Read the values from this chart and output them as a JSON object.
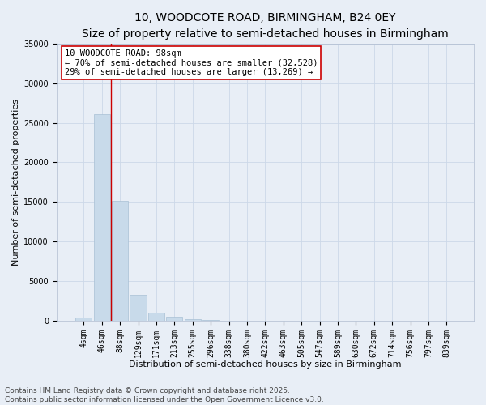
{
  "title_line1": "10, WOODCOTE ROAD, BIRMINGHAM, B24 0EY",
  "title_line2": "Size of property relative to semi-detached houses in Birmingham",
  "xlabel": "Distribution of semi-detached houses by size in Birmingham",
  "ylabel": "Number of semi-detached properties",
  "bar_color": "#c8daea",
  "bar_edge_color": "#a8c0d4",
  "bar_categories": [
    "4sqm",
    "46sqm",
    "88sqm",
    "129sqm",
    "171sqm",
    "213sqm",
    "255sqm",
    "296sqm",
    "338sqm",
    "380sqm",
    "422sqm",
    "463sqm",
    "505sqm",
    "547sqm",
    "589sqm",
    "630sqm",
    "672sqm",
    "714sqm",
    "756sqm",
    "797sqm",
    "839sqm"
  ],
  "bar_values": [
    400,
    26100,
    15100,
    3300,
    1050,
    530,
    230,
    70,
    20,
    8,
    3,
    1,
    0,
    0,
    0,
    0,
    0,
    0,
    0,
    0,
    0
  ],
  "ylim": [
    0,
    35000
  ],
  "yticks": [
    0,
    5000,
    10000,
    15000,
    20000,
    25000,
    30000,
    35000
  ],
  "vline_index": 1.5,
  "annotation_text": "10 WOODCOTE ROAD: 98sqm\n← 70% of semi-detached houses are smaller (32,528)\n29% of semi-detached houses are larger (13,269) →",
  "annotation_box_facecolor": "#ffffff",
  "annotation_box_edgecolor": "#cc0000",
  "vline_color": "#cc0000",
  "grid_color": "#ccd8e8",
  "background_color": "#e8eef6",
  "footer_text": "Contains HM Land Registry data © Crown copyright and database right 2025.\nContains public sector information licensed under the Open Government Licence v3.0.",
  "title_fontsize": 10,
  "subtitle_fontsize": 9,
  "axis_label_fontsize": 8,
  "tick_fontsize": 7,
  "annotation_fontsize": 7.5,
  "footer_fontsize": 6.5
}
